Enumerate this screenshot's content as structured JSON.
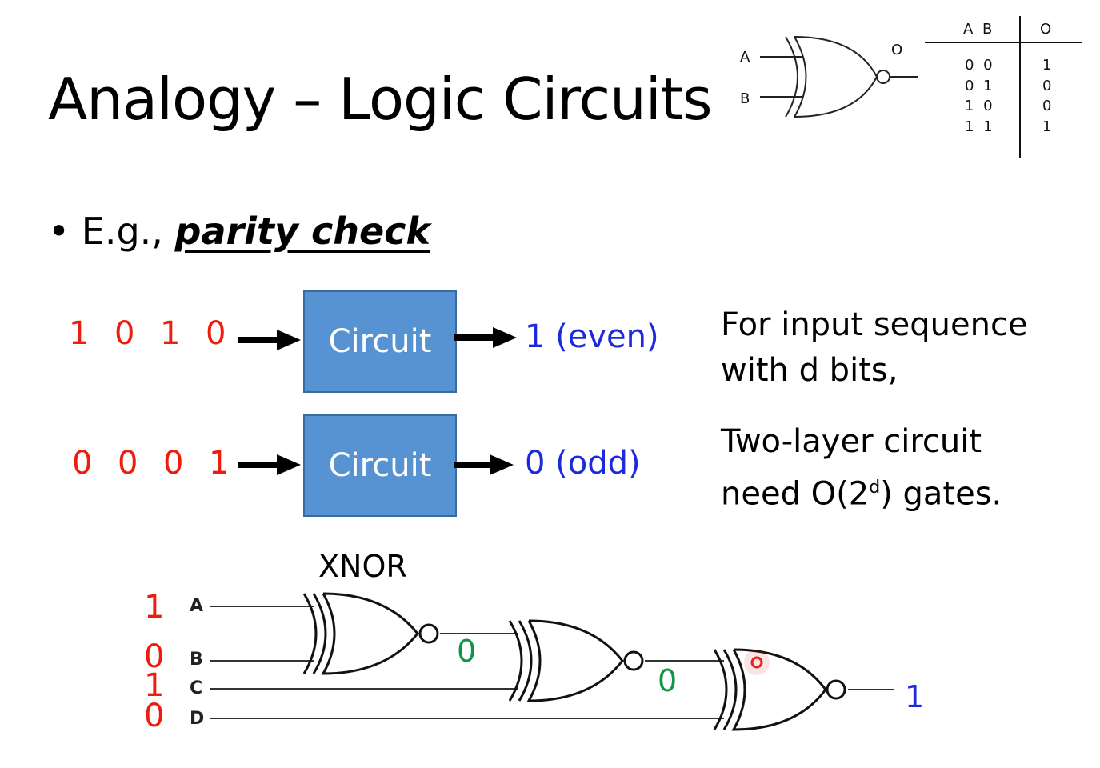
{
  "title": "Analogy – Logic Circuits",
  "bullet": {
    "marker": "•",
    "prefix": "E.g., ",
    "emphasis": "parity check"
  },
  "examples": [
    {
      "bits": [
        "1",
        "0",
        "1",
        "0"
      ],
      "box_label": "Circuit",
      "output": "1 (even)"
    },
    {
      "bits": [
        "0",
        "0",
        "0",
        "1"
      ],
      "box_label": "Circuit",
      "output": "0 (odd)"
    }
  ],
  "notes": {
    "line1": "For input sequence",
    "line2": "with d bits,",
    "line3": "Two-layer circuit",
    "line4_prefix": "need O(2",
    "line4_sup": "d",
    "line4_suffix": ") gates."
  },
  "xnor_symbol": {
    "input_a": "A",
    "input_b": "B",
    "output": "O",
    "truth_table": {
      "headers": [
        "A B",
        "O"
      ],
      "rows": [
        [
          "0 0",
          "1"
        ],
        [
          "0 1",
          "0"
        ],
        [
          "1 0",
          "0"
        ],
        [
          "1 1",
          "1"
        ]
      ]
    }
  },
  "cascade": {
    "gate_label": "XNOR",
    "inputs": [
      {
        "pin": "A",
        "bit": "1"
      },
      {
        "pin": "B",
        "bit": "0"
      },
      {
        "pin": "C",
        "bit": "1"
      },
      {
        "pin": "D",
        "bit": "0"
      }
    ],
    "intermediate": [
      "0",
      "0"
    ],
    "result": "1"
  },
  "colors": {
    "input_bits": "#ee1c0c",
    "box_fill": "#5793d2",
    "output": "#1a2adc",
    "intermediate": "#109448",
    "pointer_dot": "#e82020"
  }
}
